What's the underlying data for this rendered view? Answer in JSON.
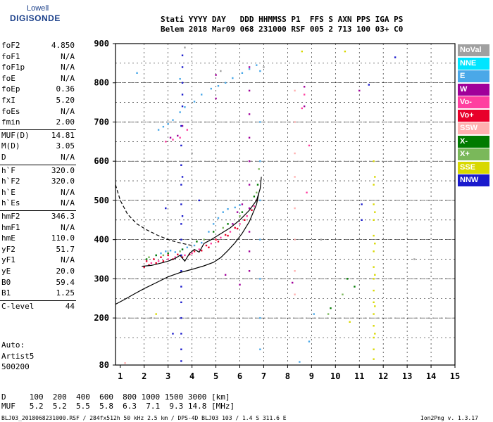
{
  "logo": {
    "top": "Lowell",
    "main": "DIGISONDE"
  },
  "header": {
    "line1": "Stati YYYY DAY   DDD HHMMSS P1  FFS S AXN PPS IGA PS",
    "line2": "Belem 2018 Mar09 068 231000 RSF 005 2 713 100 03+ C0"
  },
  "params": [
    {
      "label": "foF2",
      "value": "4.850"
    },
    {
      "label": "foF1",
      "value": "N/A"
    },
    {
      "label": "foF1p",
      "value": "N/A"
    },
    {
      "label": "foE",
      "value": "N/A"
    },
    {
      "label": "foEp",
      "value": "0.36"
    },
    {
      "label": "fxI",
      "value": "5.20"
    },
    {
      "label": "foEs",
      "value": "N/A"
    },
    {
      "label": "fmin",
      "value": "2.00"
    },
    {
      "label": "MUF(D)",
      "value": "14.81"
    },
    {
      "label": "M(D)",
      "value": "3.05"
    },
    {
      "label": "D",
      "value": "N/A"
    },
    {
      "label": "h`F",
      "value": "320.0"
    },
    {
      "label": "h`F2",
      "value": "320.0"
    },
    {
      "label": "h`E",
      "value": "N/A"
    },
    {
      "label": "h`Es",
      "value": "N/A"
    },
    {
      "label": "hmF2",
      "value": "346.3"
    },
    {
      "label": "hmF1",
      "value": "N/A"
    },
    {
      "label": "hmE",
      "value": "110.0"
    },
    {
      "label": "yF2",
      "value": "51.7"
    },
    {
      "label": "yF1",
      "value": "N/A"
    },
    {
      "label": "yE",
      "value": "20.0"
    },
    {
      "label": "B0",
      "value": "59.4"
    },
    {
      "label": "B1",
      "value": "1.25"
    },
    {
      "label": "C-level",
      "value": "44"
    }
  ],
  "auto": {
    "line1": "Auto:",
    "line2": "Artist5",
    "line3": "500200"
  },
  "legend": [
    {
      "label": "NoVal",
      "bg": "#a0a0a0",
      "fg": "#ffffff"
    },
    {
      "label": "NNE",
      "bg": "#00e5ff",
      "fg": "#ffffff"
    },
    {
      "label": "E",
      "bg": "#4aa8e8",
      "fg": "#ffffff"
    },
    {
      "label": "W",
      "bg": "#a0009a",
      "fg": "#ffffff"
    },
    {
      "label": "Vo-",
      "bg": "#ff3fa0",
      "fg": "#ffffff"
    },
    {
      "label": "Vo+",
      "bg": "#e8002a",
      "fg": "#ffffff"
    },
    {
      "label": "SSW",
      "bg": "#ffb0b0",
      "fg": "#ffffff"
    },
    {
      "label": "X-",
      "bg": "#007a00",
      "fg": "#ffffff"
    },
    {
      "label": "X+",
      "bg": "#7ab85a",
      "fg": "#ffffff"
    },
    {
      "label": "SSE",
      "bg": "#d8d800",
      "fg": "#ffffff"
    },
    {
      "label": "NNW",
      "bg": "#1a1acc",
      "fg": "#ffffff"
    }
  ],
  "footer": {
    "d_row": "D     100  200  400  600  800 1000 1500 3000 [km]",
    "muf_row": "MUF   5.2  5.2  5.5  5.8  6.3  7.1  9.3 14.8 [MHz]",
    "file_info": "BLJ03_2018068231000.RSF / 284fx512h 50 kHz 2.5 km / DPS-4D BLJ03 103 / 1.4 S 311.6 E",
    "version": "Ion2Png v. 1.3.17"
  },
  "chart_data": {
    "type": "scatter",
    "title": "",
    "xlabel": "",
    "ylabel": "",
    "xlim": [
      0.8,
      15
    ],
    "ylim": [
      80,
      900
    ],
    "xticks": [
      1,
      2,
      3,
      4,
      5,
      6,
      7,
      8,
      9,
      10,
      11,
      12,
      13,
      14,
      15
    ],
    "yticks": [
      80,
      200,
      300,
      400,
      500,
      600,
      700,
      800,
      900
    ],
    "grid_x_dashed": [
      2,
      3,
      4,
      5,
      6,
      7,
      8,
      9,
      10,
      11,
      12,
      13,
      14
    ],
    "grid_y_dashed": [
      150,
      200,
      250,
      300,
      350,
      400,
      450,
      500,
      550,
      600,
      650,
      700,
      750,
      800,
      850
    ],
    "grid_y_solid": [
      200,
      300,
      400,
      500,
      600,
      700,
      800
    ],
    "series": [
      {
        "name": "E",
        "color": "#4aa8e8",
        "points": [
          [
            2.5,
            360
          ],
          [
            2.7,
            365
          ],
          [
            2.9,
            370
          ],
          [
            3.1,
            372
          ],
          [
            3.3,
            368
          ],
          [
            3.6,
            375
          ],
          [
            3.8,
            380
          ],
          [
            4.1,
            385
          ],
          [
            4.4,
            392
          ],
          [
            4.7,
            420
          ],
          [
            4.9,
            440
          ],
          [
            5.1,
            455
          ],
          [
            5.3,
            470
          ],
          [
            5.5,
            478
          ],
          [
            5.8,
            482
          ],
          [
            6.0,
            488
          ],
          [
            2.6,
            680
          ],
          [
            2.8,
            688
          ],
          [
            3.0,
            695
          ],
          [
            3.2,
            705
          ],
          [
            3.5,
            725
          ],
          [
            3.7,
            738
          ],
          [
            4.1,
            752
          ],
          [
            4.4,
            770
          ],
          [
            4.8,
            785
          ],
          [
            5.1,
            792
          ],
          [
            5.4,
            800
          ],
          [
            5.7,
            812
          ],
          [
            6.1,
            825
          ],
          [
            6.4,
            835
          ],
          [
            6.7,
            845
          ],
          [
            6.85,
            830
          ],
          [
            6.85,
            700
          ],
          [
            6.85,
            600
          ],
          [
            6.85,
            500
          ],
          [
            6.85,
            400
          ],
          [
            6.85,
            300
          ],
          [
            6.85,
            200
          ],
          [
            6.85,
            120
          ],
          [
            3.5,
            810
          ],
          [
            1.7,
            825
          ],
          [
            8.5,
            88
          ],
          [
            8.9,
            140
          ],
          [
            9.1,
            210
          ]
        ]
      },
      {
        "name": "W",
        "color": "#a0009a",
        "points": [
          [
            3.6,
            690
          ],
          [
            6.4,
            840
          ],
          [
            6.4,
            780
          ],
          [
            6.4,
            720
          ],
          [
            6.4,
            660
          ],
          [
            6.4,
            600
          ],
          [
            6.4,
            540
          ],
          [
            6.4,
            480
          ],
          [
            6.4,
            420
          ],
          [
            6.4,
            370
          ],
          [
            6.4,
            320
          ],
          [
            5.7,
            440
          ],
          [
            5.9,
            470
          ],
          [
            6.1,
            490
          ],
          [
            3.1,
            660
          ],
          [
            3.4,
            665
          ],
          [
            8.7,
            790
          ],
          [
            8.7,
            740
          ],
          [
            8.2,
            290
          ],
          [
            6.0,
            285
          ],
          [
            5.4,
            310
          ],
          [
            5.0,
            760
          ],
          [
            5.0,
            820
          ],
          [
            11.0,
            780
          ]
        ]
      },
      {
        "name": "Vo-",
        "color": "#ff3fa0",
        "points": [
          [
            2.3,
            340
          ],
          [
            2.6,
            345
          ],
          [
            3.0,
            350
          ],
          [
            3.3,
            355
          ],
          [
            3.7,
            360
          ],
          [
            4.0,
            365
          ],
          [
            4.3,
            375
          ],
          [
            4.8,
            390
          ],
          [
            5.2,
            405
          ],
          [
            5.6,
            420
          ],
          [
            6.0,
            440
          ],
          [
            6.3,
            460
          ],
          [
            6.6,
            485
          ],
          [
            2.9,
            650
          ],
          [
            3.2,
            655
          ],
          [
            3.5,
            660
          ],
          [
            3.8,
            680
          ],
          [
            8.7,
            770
          ],
          [
            8.6,
            735
          ],
          [
            8.9,
            640
          ],
          [
            8.8,
            520
          ]
        ]
      },
      {
        "name": "Vo+",
        "color": "#e8002a",
        "points": [
          [
            2.0,
            330
          ],
          [
            2.2,
            335
          ],
          [
            2.5,
            340
          ],
          [
            2.8,
            345
          ],
          [
            3.2,
            350
          ],
          [
            3.6,
            355
          ],
          [
            3.9,
            362
          ],
          [
            4.4,
            372
          ],
          [
            4.7,
            380
          ],
          [
            5.1,
            395
          ],
          [
            5.5,
            410
          ],
          [
            5.9,
            428
          ],
          [
            6.2,
            450
          ],
          [
            6.5,
            475
          ],
          [
            6.7,
            500
          ],
          [
            2.1,
            345
          ],
          [
            2.4,
            350
          ],
          [
            2.7,
            355
          ],
          [
            3.0,
            360
          ],
          [
            3.4,
            362
          ],
          [
            4.1,
            370
          ],
          [
            4.6,
            385
          ],
          [
            5.0,
            400
          ],
          [
            5.4,
            412
          ],
          [
            5.8,
            430
          ]
        ]
      },
      {
        "name": "SSW",
        "color": "#ffb0b0",
        "points": [
          [
            8.3,
            780
          ],
          [
            8.3,
            700
          ],
          [
            8.3,
            620
          ],
          [
            8.3,
            560
          ],
          [
            8.3,
            480
          ],
          [
            8.3,
            400
          ],
          [
            8.3,
            320
          ],
          [
            8.3,
            260
          ],
          [
            1.2,
            85
          ]
        ]
      },
      {
        "name": "X-",
        "color": "#007a00",
        "points": [
          [
            2.1,
            350
          ],
          [
            2.5,
            360
          ],
          [
            3.0,
            365
          ],
          [
            3.6,
            375
          ],
          [
            4.2,
            395
          ],
          [
            4.9,
            420
          ],
          [
            5.5,
            440
          ],
          [
            6.1,
            470
          ],
          [
            6.6,
            510
          ],
          [
            6.75,
            540
          ],
          [
            9.8,
            225
          ],
          [
            10.5,
            300
          ],
          [
            10.8,
            280
          ]
        ]
      },
      {
        "name": "X+",
        "color": "#7ab85a",
        "points": [
          [
            2.2,
            355
          ],
          [
            2.8,
            360
          ],
          [
            3.5,
            370
          ],
          [
            4.5,
            400
          ],
          [
            5.3,
            430
          ],
          [
            6.0,
            460
          ],
          [
            6.7,
            520
          ],
          [
            6.8,
            580
          ],
          [
            9.7,
            210
          ],
          [
            10.3,
            260
          ]
        ]
      },
      {
        "name": "SSE",
        "color": "#d8d800",
        "points": [
          [
            11.6,
            600
          ],
          [
            11.6,
            540
          ],
          [
            11.6,
            490
          ],
          [
            11.6,
            450
          ],
          [
            11.6,
            410
          ],
          [
            11.6,
            370
          ],
          [
            11.6,
            330
          ],
          [
            11.6,
            300
          ],
          [
            11.6,
            270
          ],
          [
            11.6,
            240
          ],
          [
            11.6,
            210
          ],
          [
            11.6,
            180
          ],
          [
            11.6,
            150
          ],
          [
            11.6,
            120
          ],
          [
            11.6,
            95
          ],
          [
            11.65,
            560
          ],
          [
            11.65,
            470
          ],
          [
            11.65,
            390
          ],
          [
            11.65,
            310
          ],
          [
            11.65,
            230
          ],
          [
            11.65,
            160
          ],
          [
            8.6,
            880
          ],
          [
            10.4,
            880
          ],
          [
            2.5,
            210
          ],
          [
            10.6,
            190
          ]
        ]
      },
      {
        "name": "NNW",
        "color": "#1a1acc",
        "points": [
          [
            3.55,
            690
          ],
          [
            3.55,
            640
          ],
          [
            3.55,
            590
          ],
          [
            3.55,
            540
          ],
          [
            3.55,
            490
          ],
          [
            3.55,
            440
          ],
          [
            3.55,
            400
          ],
          [
            3.55,
            360
          ],
          [
            3.55,
            320
          ],
          [
            3.55,
            280
          ],
          [
            3.55,
            240
          ],
          [
            3.55,
            200
          ],
          [
            3.55,
            160
          ],
          [
            3.55,
            120
          ],
          [
            3.55,
            90
          ],
          [
            3.6,
            870
          ],
          [
            3.6,
            840
          ],
          [
            3.6,
            800
          ],
          [
            3.6,
            770
          ],
          [
            3.6,
            740
          ],
          [
            3.6,
            560
          ],
          [
            3.6,
            460
          ],
          [
            2.9,
            480
          ],
          [
            4.3,
            500
          ],
          [
            11.1,
            450
          ],
          [
            11.1,
            490
          ],
          [
            11.4,
            795
          ],
          [
            12.5,
            865
          ],
          [
            3.2,
            160
          ]
        ]
      },
      {
        "name": "NoVal",
        "color": "#a0a0a0",
        "points": [
          [
            3.7,
            890
          ],
          [
            4.0,
            620
          ],
          [
            5.2,
            830
          ],
          [
            7.0,
            840
          ],
          [
            9.4,
            400
          ],
          [
            2.3,
            200
          ],
          [
            13.3,
            350
          ]
        ]
      }
    ],
    "lines": [
      {
        "style": "solid",
        "color": "#000000",
        "points": [
          [
            0.8,
            235
          ],
          [
            1.2,
            248
          ],
          [
            1.6,
            262
          ],
          [
            2.0,
            275
          ],
          [
            2.5,
            290
          ],
          [
            3.0,
            305
          ],
          [
            3.5,
            316
          ],
          [
            4.0,
            324
          ],
          [
            4.5,
            333
          ],
          [
            4.9,
            342
          ],
          [
            5.2,
            354
          ],
          [
            5.5,
            372
          ],
          [
            5.8,
            392
          ],
          [
            6.1,
            416
          ],
          [
            6.4,
            446
          ],
          [
            6.7,
            490
          ],
          [
            6.8,
            520
          ]
        ]
      },
      {
        "style": "solid",
        "color": "#000000",
        "points": [
          [
            1.9,
            332
          ],
          [
            2.3,
            334
          ],
          [
            2.7,
            340
          ],
          [
            3.0,
            345
          ],
          [
            3.3,
            352
          ],
          [
            3.5,
            360
          ],
          [
            3.7,
            345
          ],
          [
            3.9,
            365
          ],
          [
            4.1,
            375
          ],
          [
            4.3,
            368
          ],
          [
            4.5,
            390
          ],
          [
            4.8,
            400
          ],
          [
            5.2,
            415
          ],
          [
            5.6,
            430
          ],
          [
            6.0,
            450
          ],
          [
            6.4,
            475
          ],
          [
            6.7,
            500
          ],
          [
            6.85,
            530
          ],
          [
            6.9,
            560
          ]
        ]
      },
      {
        "style": "dashed",
        "color": "#000000",
        "points": [
          [
            0.8,
            540
          ],
          [
            1.0,
            500
          ],
          [
            1.3,
            465
          ],
          [
            1.7,
            440
          ],
          [
            2.1,
            425
          ],
          [
            2.6,
            410
          ],
          [
            3.1,
            398
          ],
          [
            3.6,
            390
          ],
          [
            4.0,
            385
          ]
        ]
      }
    ]
  }
}
